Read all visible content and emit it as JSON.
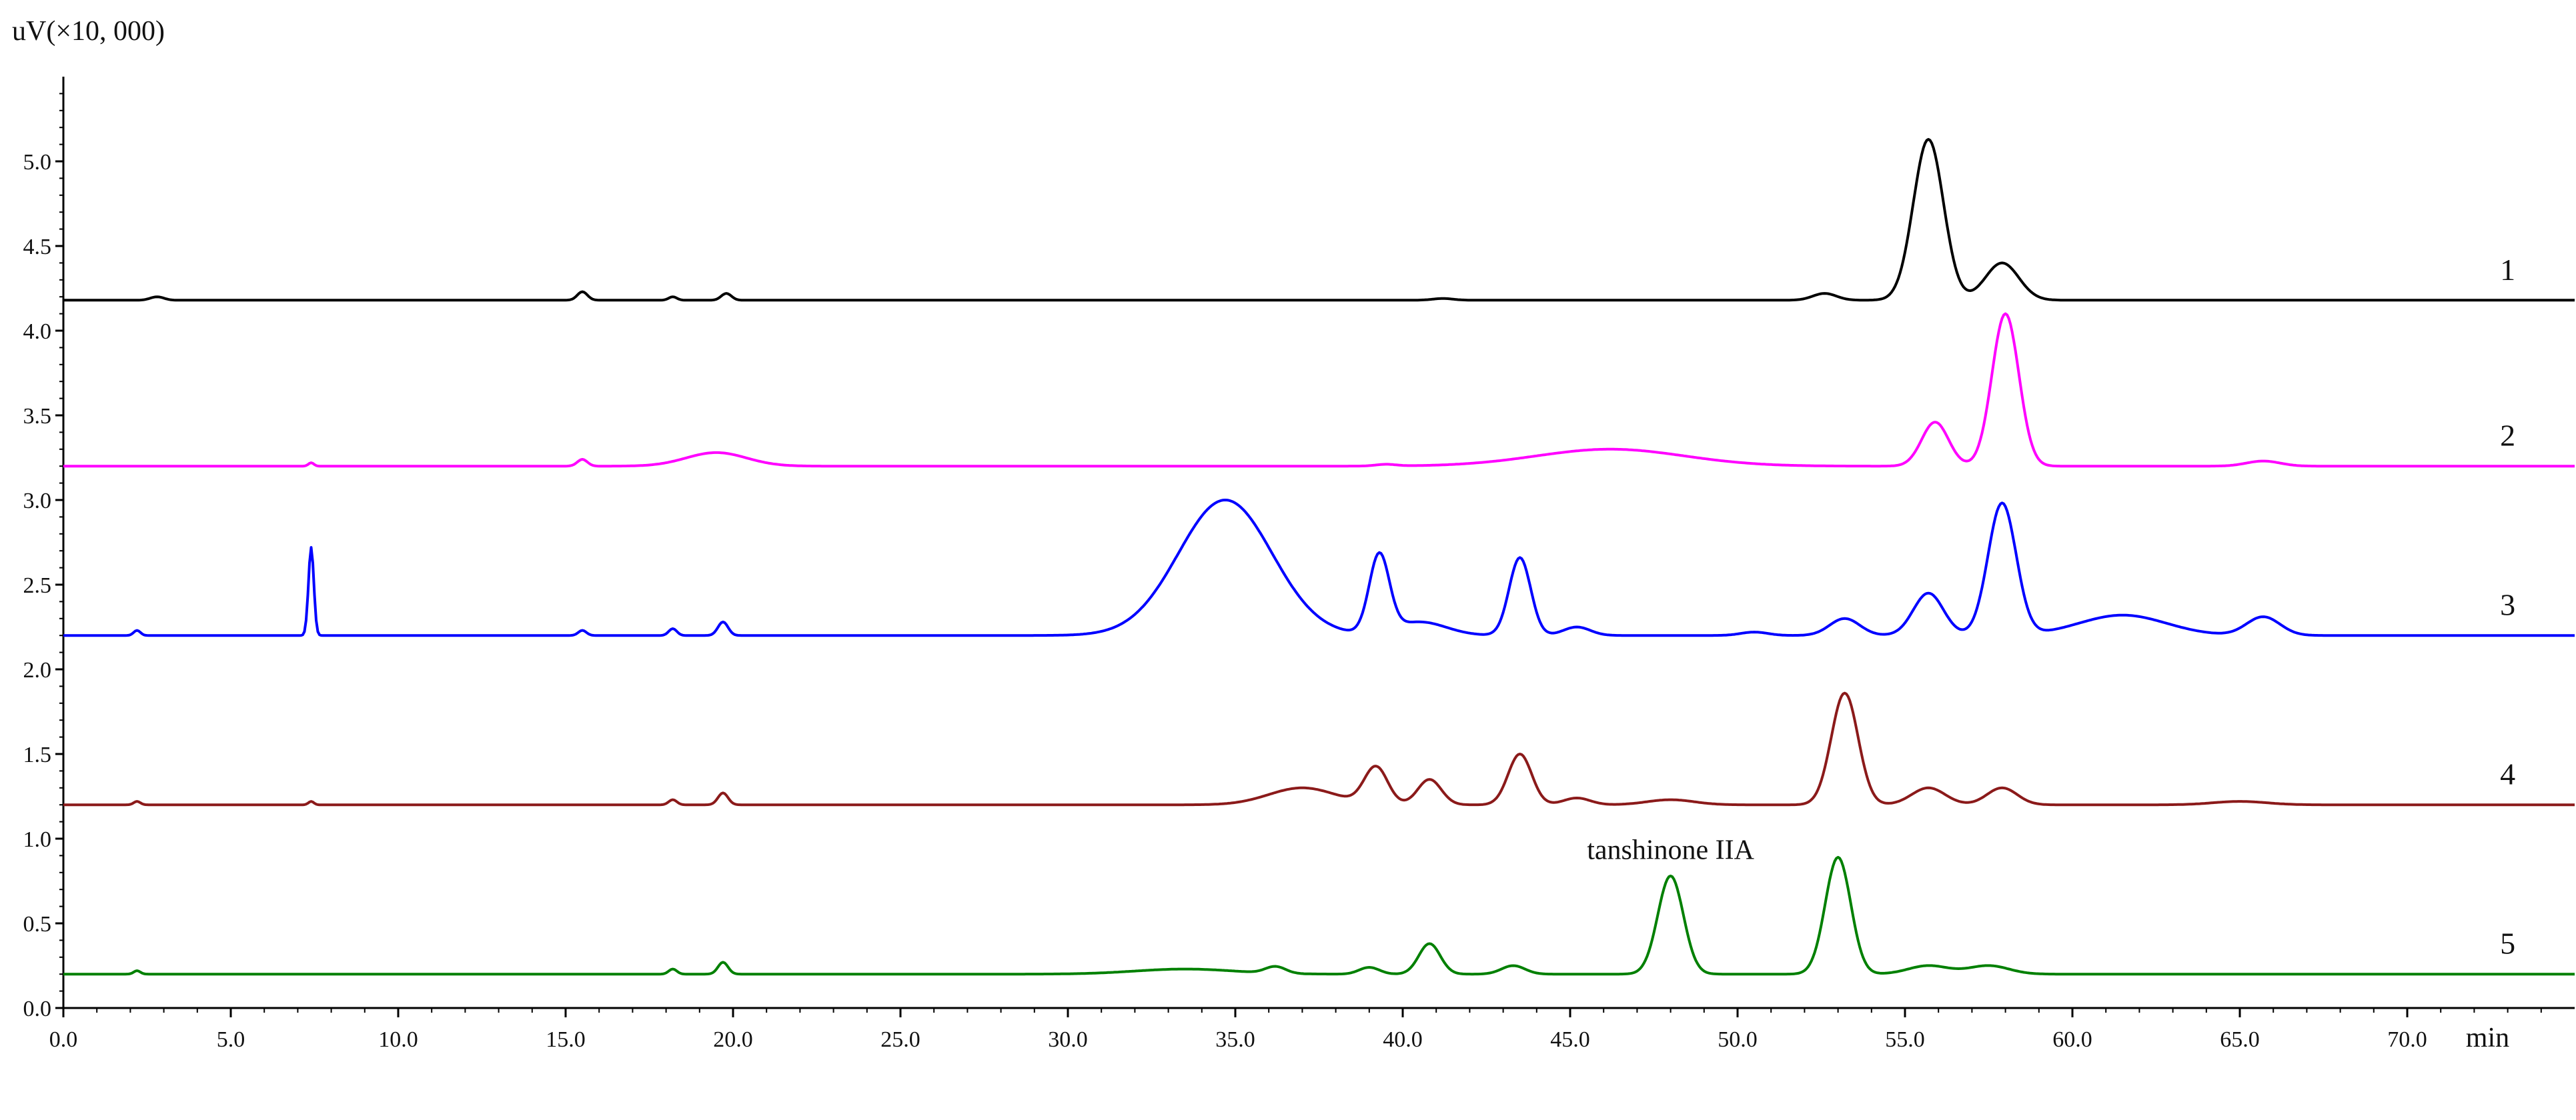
{
  "chart_data": {
    "type": "line",
    "title": "",
    "ylabel": "uV(×10, 000)",
    "xlabel": "min",
    "xlim": [
      0,
      75
    ],
    "ylim": [
      0,
      5.5
    ],
    "x_ticks": [
      "0.0",
      "5.0",
      "10.0",
      "15.0",
      "20.0",
      "25.0",
      "30.0",
      "35.0",
      "40.0",
      "45.0",
      "50.0",
      "55.0",
      "60.0",
      "65.0",
      "70.0"
    ],
    "y_ticks": [
      "0.0",
      "0.5",
      "1.0",
      "1.5",
      "2.0",
      "2.5",
      "3.0",
      "3.5",
      "4.0",
      "4.5",
      "5.0"
    ],
    "grid": false,
    "annotations": [
      {
        "text": "tanshinone IIA",
        "x": 48.0,
        "y": 0.88
      }
    ],
    "series": [
      {
        "name": "1",
        "color": "#000000",
        "baseline": 4.18,
        "peaks": [
          [
            2.8,
            0.02,
            0.2
          ],
          [
            15.5,
            0.05,
            0.15
          ],
          [
            18.2,
            0.02,
            0.12
          ],
          [
            19.8,
            0.04,
            0.15
          ],
          [
            41.2,
            0.01,
            0.3
          ],
          [
            52.6,
            0.04,
            0.35
          ],
          [
            55.7,
            0.95,
            0.45
          ],
          [
            57.9,
            0.22,
            0.5
          ]
        ]
      },
      {
        "name": "2",
        "color": "#ff00ff",
        "baseline": 3.2,
        "peaks": [
          [
            7.4,
            0.02,
            0.08
          ],
          [
            15.5,
            0.04,
            0.15
          ],
          [
            19.5,
            0.08,
            0.9
          ],
          [
            39.5,
            0.01,
            0.3
          ],
          [
            46.2,
            0.1,
            2.2
          ],
          [
            55.9,
            0.26,
            0.4
          ],
          [
            58.0,
            0.9,
            0.4
          ],
          [
            65.7,
            0.03,
            0.5
          ]
        ]
      },
      {
        "name": "3",
        "color": "#0000ff",
        "baseline": 2.2,
        "peaks": [
          [
            2.2,
            0.03,
            0.1
          ],
          [
            7.4,
            0.52,
            0.08
          ],
          [
            15.5,
            0.03,
            0.12
          ],
          [
            18.2,
            0.04,
            0.12
          ],
          [
            19.7,
            0.08,
            0.15
          ],
          [
            34.7,
            0.8,
            1.4
          ],
          [
            39.3,
            0.46,
            0.3
          ],
          [
            40.5,
            0.08,
            0.8
          ],
          [
            43.5,
            0.46,
            0.32
          ],
          [
            45.2,
            0.05,
            0.4
          ],
          [
            50.5,
            0.02,
            0.4
          ],
          [
            53.2,
            0.1,
            0.45
          ],
          [
            55.7,
            0.25,
            0.45
          ],
          [
            57.9,
            0.78,
            0.42
          ],
          [
            61.5,
            0.12,
            1.3
          ],
          [
            65.7,
            0.11,
            0.5
          ]
        ]
      },
      {
        "name": "4",
        "color": "#8b1a1a",
        "baseline": 1.2,
        "peaks": [
          [
            2.2,
            0.02,
            0.1
          ],
          [
            7.4,
            0.02,
            0.08
          ],
          [
            18.2,
            0.03,
            0.12
          ],
          [
            19.7,
            0.07,
            0.15
          ],
          [
            37.0,
            0.1,
            1.0
          ],
          [
            39.2,
            0.22,
            0.35
          ],
          [
            40.8,
            0.15,
            0.35
          ],
          [
            43.5,
            0.3,
            0.35
          ],
          [
            45.2,
            0.04,
            0.4
          ],
          [
            48.0,
            0.03,
            0.7
          ],
          [
            53.2,
            0.66,
            0.4
          ],
          [
            55.7,
            0.1,
            0.5
          ],
          [
            57.9,
            0.1,
            0.45
          ],
          [
            65.0,
            0.02,
            0.8
          ]
        ]
      },
      {
        "name": "5",
        "color": "#008000",
        "baseline": 0.2,
        "peaks": [
          [
            2.2,
            0.02,
            0.1
          ],
          [
            18.2,
            0.03,
            0.12
          ],
          [
            19.7,
            0.07,
            0.15
          ],
          [
            33.5,
            0.03,
            1.5
          ],
          [
            36.2,
            0.04,
            0.3
          ],
          [
            39.0,
            0.04,
            0.3
          ],
          [
            40.8,
            0.18,
            0.32
          ],
          [
            43.3,
            0.05,
            0.35
          ],
          [
            48.0,
            0.58,
            0.38
          ],
          [
            53.0,
            0.69,
            0.38
          ],
          [
            55.7,
            0.05,
            0.6
          ],
          [
            57.5,
            0.05,
            0.6
          ]
        ]
      }
    ]
  }
}
